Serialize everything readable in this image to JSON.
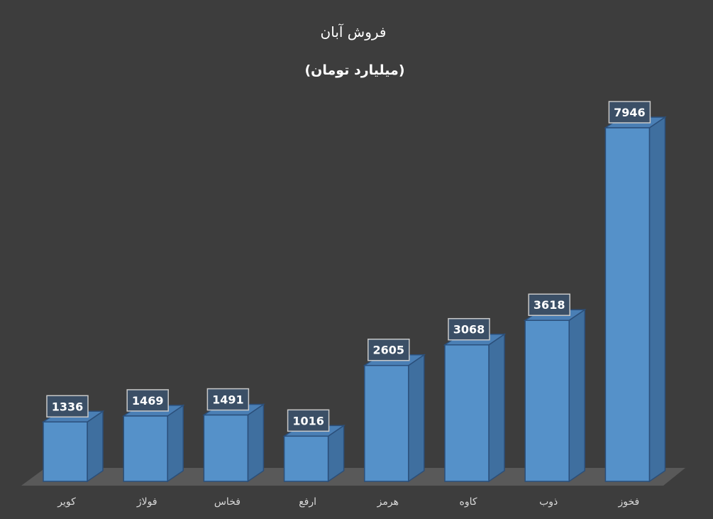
{
  "chart_data": {
    "type": "bar",
    "title": "فروش آبان",
    "subtitle": "(میلیارد تومان)",
    "categories": [
      "کویر",
      "فولاژ",
      "فخاس",
      "ارفع",
      "هرمز",
      "کاوه",
      "ذوب",
      "فخوز"
    ],
    "values": [
      1336,
      1469,
      1491,
      1016,
      2605,
      3068,
      3618,
      7946
    ],
    "xlabel": "",
    "ylabel": "",
    "ylim": [
      0,
      8000
    ],
    "grid": false,
    "legend": "none",
    "data_labels": true,
    "style": "3d-column"
  },
  "colors": {
    "background": "#3d3d3d",
    "bar_front": "#5591c9",
    "bar_side": "#3f6f9f",
    "bar_top": "#4a7fb5",
    "bar_edge": "#2b4f7a",
    "floor": "#595959",
    "label_box": "#3b4f66",
    "label_border": "#c8c8c8"
  }
}
